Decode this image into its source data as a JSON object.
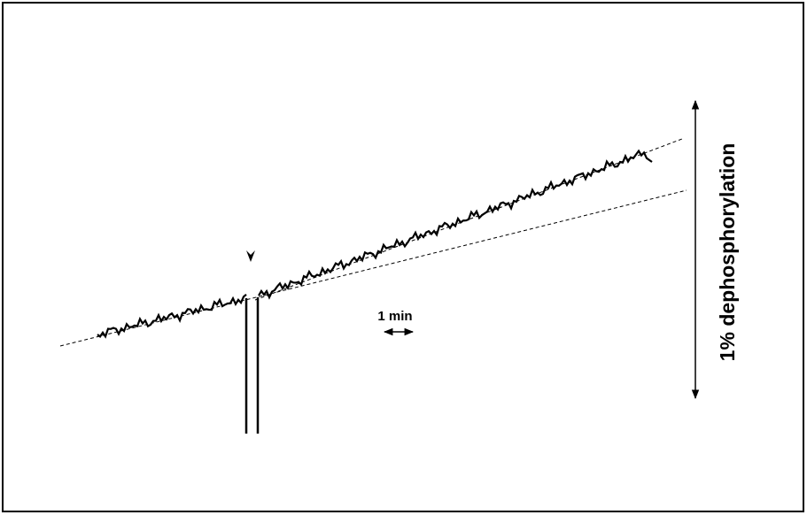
{
  "scale_bars": {
    "time": "1 min",
    "vertical": "1% dephosphorylation"
  }
}
